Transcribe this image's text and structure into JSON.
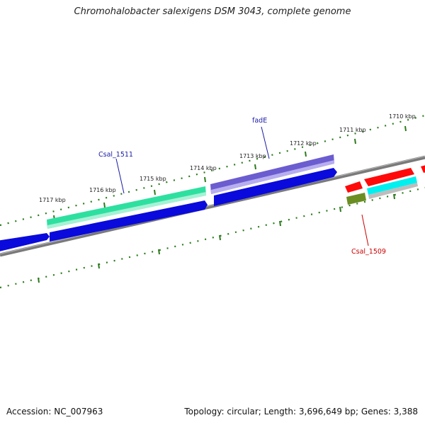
{
  "title": "Chromohalobacter salexigens DSM 3043, complete genome",
  "footer": {
    "accession": "Accession: NC_007963",
    "summary": "Topology: circular; Length: 3,696,649 bp; Genes: 3,388"
  },
  "ticks": {
    "outer": [
      "1710 kbp",
      "1711 kbp",
      "1712 kbp",
      "1713 kbp",
      "1714 kbp",
      "1715 kbp",
      "1716 kbp",
      "1717 kbp"
    ]
  },
  "gene_labels": [
    {
      "text": "fadE",
      "color": "#1a1aa6"
    },
    {
      "text": "Csal_1511",
      "color": "#1a1aa6"
    },
    {
      "text": "Csal_1509",
      "color": "#cc0000"
    }
  ],
  "colors": {
    "backbone": "#808080",
    "tick": "#2a7a1a",
    "cds_forward": "#0a0adc",
    "gene_fadE": "#7b68d8",
    "gene_Csal_1511": "#2ee0a0",
    "cds_reverse_red": "#ff0a0a",
    "gene_cyan": "#00f0f0",
    "gene_olive": "#6b8e23"
  }
}
